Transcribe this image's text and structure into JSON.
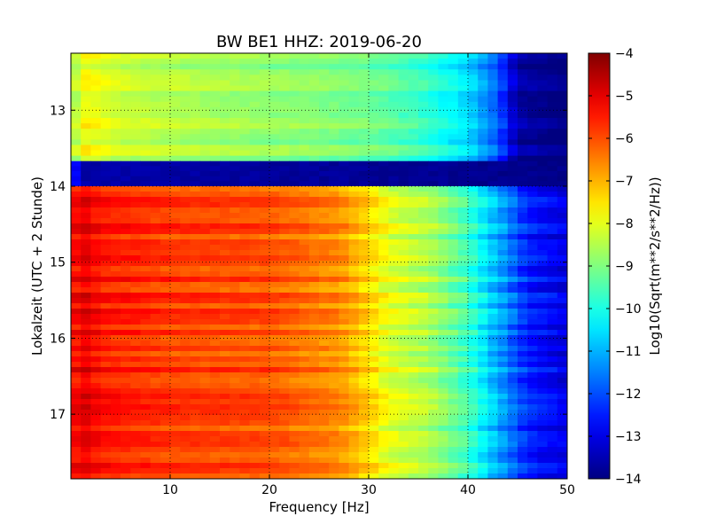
{
  "chart_data": {
    "type": "heatmap",
    "title": "BW BE1 HHZ: 2019-06-20",
    "xlabel": "Frequency [Hz]",
    "ylabel": "Lokalzeit (UTC + 2 Stunde)",
    "xlim": [
      0,
      50
    ],
    "ylim": [
      12.25,
      17.85
    ],
    "y_inverted": true,
    "x_ticks": [
      10,
      20,
      30,
      40,
      50
    ],
    "y_ticks": [
      13,
      14,
      15,
      16,
      17
    ],
    "grid": "dotted",
    "colormap": "jet",
    "colorbar": {
      "label": "Log10(Sqrt(m**2/s**2/Hz))",
      "range": [
        -14,
        -4
      ],
      "ticks": [
        -4,
        -5,
        -6,
        -7,
        -8,
        -9,
        -10,
        -11,
        -12,
        -13,
        -14
      ]
    },
    "segments": [
      {
        "time_range": [
          12.25,
          13.67
        ],
        "profile": [
          {
            "f": 0,
            "v": -9.0
          },
          {
            "f": 1,
            "v": -7.7
          },
          {
            "f": 5,
            "v": -8.2
          },
          {
            "f": 15,
            "v": -8.6
          },
          {
            "f": 25,
            "v": -8.9
          },
          {
            "f": 30,
            "v": -9.1
          },
          {
            "f": 35,
            "v": -9.6
          },
          {
            "f": 40,
            "v": -10.5
          },
          {
            "f": 43,
            "v": -11.8
          },
          {
            "f": 45,
            "v": -13.6
          },
          {
            "f": 50,
            "v": -14.0
          }
        ]
      },
      {
        "time_range": [
          13.67,
          14.0
        ],
        "profile": [
          {
            "f": 0,
            "v": -12.0
          },
          {
            "f": 1,
            "v": -13.6
          },
          {
            "f": 50,
            "v": -13.9
          }
        ]
      },
      {
        "time_range": [
          14.0,
          17.85
        ],
        "profile": [
          {
            "f": 0,
            "v": -5.6
          },
          {
            "f": 1,
            "v": -4.9
          },
          {
            "f": 3,
            "v": -5.4
          },
          {
            "f": 10,
            "v": -5.8
          },
          {
            "f": 20,
            "v": -6.0
          },
          {
            "f": 27,
            "v": -6.6
          },
          {
            "f": 30,
            "v": -7.3
          },
          {
            "f": 32,
            "v": -8.0
          },
          {
            "f": 36,
            "v": -8.5
          },
          {
            "f": 40,
            "v": -9.6
          },
          {
            "f": 43,
            "v": -11.0
          },
          {
            "f": 46,
            "v": -12.4
          },
          {
            "f": 50,
            "v": -13.0
          }
        ]
      }
    ]
  }
}
